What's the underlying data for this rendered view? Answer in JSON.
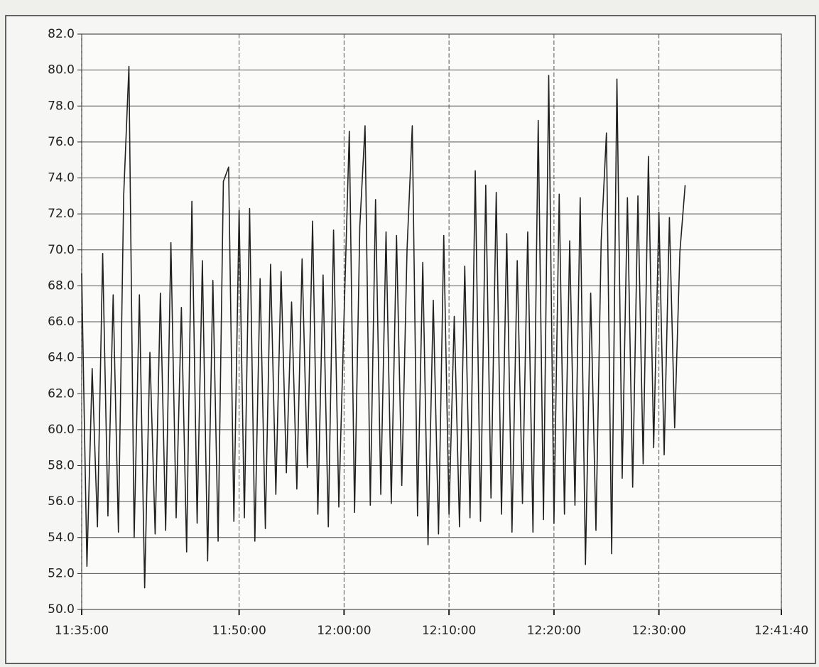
{
  "chart_data": {
    "type": "line",
    "x": [
      "11:35:00",
      "11:35:30",
      "11:36:00",
      "11:36:30",
      "11:37:00",
      "11:37:30",
      "11:38:00",
      "11:38:30",
      "11:39:00",
      "11:39:30",
      "11:40:00",
      "11:40:30",
      "11:41:00",
      "11:41:30",
      "11:42:00",
      "11:42:30",
      "11:43:00",
      "11:43:30",
      "11:44:00",
      "11:44:30",
      "11:45:00",
      "11:45:30",
      "11:46:00",
      "11:46:30",
      "11:47:00",
      "11:47:30",
      "11:48:00",
      "11:48:30",
      "11:49:00",
      "11:49:30",
      "11:50:00",
      "11:50:30",
      "11:51:00",
      "11:51:30",
      "11:52:00",
      "11:52:30",
      "11:53:00",
      "11:53:30",
      "11:54:00",
      "11:54:30",
      "11:55:00",
      "11:55:30",
      "11:56:00",
      "11:56:30",
      "11:57:00",
      "11:57:30",
      "11:58:00",
      "11:58:30",
      "11:59:00",
      "11:59:30",
      "12:00:00",
      "12:00:30",
      "12:01:00",
      "12:01:30",
      "12:02:00",
      "12:02:30",
      "12:03:00",
      "12:03:30",
      "12:04:00",
      "12:04:30",
      "12:05:00",
      "12:05:30",
      "12:06:00",
      "12:06:30",
      "12:07:00",
      "12:07:30",
      "12:08:00",
      "12:08:30",
      "12:09:00",
      "12:09:30",
      "12:10:00",
      "12:10:30",
      "12:11:00",
      "12:11:30",
      "12:12:00",
      "12:12:30",
      "12:13:00",
      "12:13:30",
      "12:14:00",
      "12:14:30",
      "12:15:00",
      "12:15:30",
      "12:16:00",
      "12:16:30",
      "12:17:00",
      "12:17:30",
      "12:18:00",
      "12:18:30",
      "12:19:00",
      "12:19:30",
      "12:20:00",
      "12:20:30",
      "12:21:00",
      "12:21:30",
      "12:22:00",
      "12:22:30",
      "12:23:00",
      "12:23:30",
      "12:24:00",
      "12:24:30",
      "12:25:00",
      "12:25:30",
      "12:26:00",
      "12:26:30",
      "12:27:00",
      "12:27:30",
      "12:28:00",
      "12:28:30",
      "12:29:00",
      "12:29:30",
      "12:30:00",
      "12:30:30",
      "12:31:00",
      "12:31:30",
      "12:32:00",
      "12:32:30"
    ],
    "series": [
      {
        "color": "#222222",
        "values": [
          68.7,
          52.4,
          63.4,
          54.6,
          69.8,
          55.2,
          67.5,
          54.3,
          73.0,
          80.2,
          54.0,
          67.5,
          51.2,
          64.3,
          54.2,
          67.6,
          54.4,
          70.4,
          55.1,
          66.8,
          53.2,
          72.7,
          54.8,
          69.4,
          52.7,
          68.3,
          53.8,
          73.8,
          74.6,
          54.9,
          72.2,
          55.1,
          72.3,
          53.8,
          68.4,
          54.5,
          69.2,
          56.4,
          68.8,
          57.6,
          67.1,
          56.7,
          69.5,
          57.9,
          71.6,
          55.3,
          68.6,
          54.6,
          71.1,
          55.7,
          66.3,
          76.6,
          55.4,
          71.3,
          76.9,
          55.8,
          72.8,
          56.4,
          71.0,
          55.9,
          70.8,
          56.9,
          70.0,
          76.9,
          55.2,
          69.3,
          53.6,
          67.2,
          54.2,
          70.8,
          55.3,
          66.3,
          54.6,
          69.1,
          55.1,
          74.4,
          54.9,
          73.6,
          56.2,
          73.2,
          55.3,
          70.9,
          54.3,
          69.4,
          55.9,
          71.0,
          54.3,
          77.2,
          55.0,
          79.7,
          54.8,
          73.1,
          55.3,
          70.5,
          55.8,
          72.9,
          52.5,
          67.6,
          54.4,
          70.5,
          76.5,
          53.1,
          79.5,
          57.3,
          72.9,
          56.8,
          73.0,
          58.1,
          75.2,
          59.0,
          72.1,
          58.6,
          71.8,
          60.1,
          69.9,
          73.6
        ]
      }
    ],
    "xlim": [
      "11:35:00",
      "12:41:40"
    ],
    "xticks": [
      "11:35:00",
      "11:50:00",
      "12:00:00",
      "12:10:00",
      "12:20:00",
      "12:30:00",
      "12:41:40"
    ],
    "ylim": [
      50,
      82
    ],
    "yticks": [
      {
        "value": 50,
        "label": "50.0"
      },
      {
        "value": 52,
        "label": "52.0"
      },
      {
        "value": 54,
        "label": "54.0"
      },
      {
        "value": 56,
        "label": "56.0"
      },
      {
        "value": 58,
        "label": "58.0"
      },
      {
        "value": 60,
        "label": "60.0"
      },
      {
        "value": 62,
        "label": "62.0"
      },
      {
        "value": 64,
        "label": "64.0"
      },
      {
        "value": 66,
        "label": "66.0"
      },
      {
        "value": 68,
        "label": "68.0"
      },
      {
        "value": 70,
        "label": "70.0"
      },
      {
        "value": 72,
        "label": "72.0"
      },
      {
        "value": 74,
        "label": "74.0"
      },
      {
        "value": 76,
        "label": "76.0"
      },
      {
        "value": 78,
        "label": "78.0"
      },
      {
        "value": 80,
        "label": "80.0"
      },
      {
        "value": 82,
        "label": "82.0"
      }
    ],
    "grid": true
  }
}
